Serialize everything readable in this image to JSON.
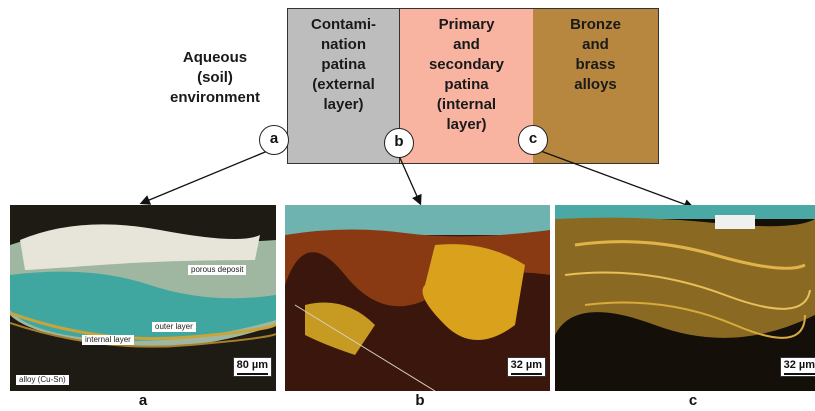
{
  "environment_label": [
    "Aqueous",
    "(soil)",
    "environment"
  ],
  "bands": {
    "a": [
      "Contami-",
      "nation",
      "patina",
      "(external",
      "layer)"
    ],
    "b": [
      "Primary",
      "and",
      "secondary",
      "patina",
      "(internal",
      "layer)"
    ],
    "c": [
      "Bronze",
      "and",
      "brass",
      "alloys"
    ]
  },
  "markers": [
    "a",
    "b",
    "c"
  ],
  "micrographs": {
    "a": {
      "labels": [
        "porous deposit",
        "outer layer",
        "internal layer",
        "alloy (Cu-Sn)"
      ],
      "scale": "80 µm",
      "caption": "a"
    },
    "b": {
      "scale": "32 µm",
      "caption": "b"
    },
    "c": {
      "scale": "32 µm",
      "caption": "c"
    }
  },
  "colors": {
    "contamination_band": "#bdbdbd",
    "patina_band": "#f8b4a0",
    "alloy_band": "#b8873f"
  }
}
